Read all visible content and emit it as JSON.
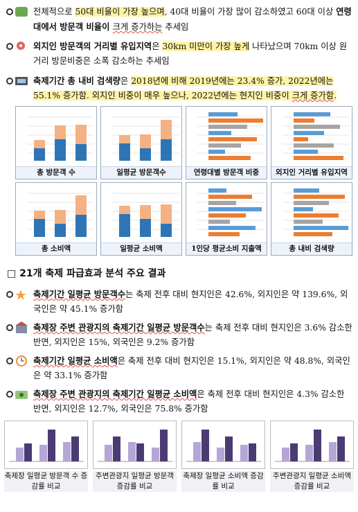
{
  "intro": [
    {
      "runs": [
        "전체적으로 ",
        "50대 비율이 가장 높으며",
        ", 40대 비율이 가장 많이 감소하였고 60대 이상 ",
        "연령대에서 방문객 비율이 ",
        "크게 증가하는",
        " 추세임"
      ]
    },
    {
      "runs": [
        "외지인 방문객의 거리별 유입지역",
        "은 ",
        "30km 미만이 가장 높게",
        " 나타났으며 70km 이상 원거리 방문비중은 소폭 감소하는 추세임"
      ]
    },
    {
      "runs": [
        "축제기간 총 내비 검색량",
        "은 ",
        "2018년에 비해 2019년에는 23.4% 증가, 2022년에는 55.1% 증가함",
        ". 외지인 비중이 매우 높으나, 2022년에는 현지인 비중이 ",
        "크게 증가함",
        "."
      ]
    }
  ],
  "chart_captions": [
    "총 방문객 수",
    "일평균 방문객수",
    "연령대별 방문객 비중",
    "외지인 거리별 유입지역",
    "총 소비액",
    "일평균 소비액",
    "1인당 평균소비 지출액",
    "총 내비 검색량"
  ],
  "section": {
    "title": "□ 21개 축제 파급효과 분석 주요 결과",
    "items": [
      {
        "runs": [
          "축제기간 일평균 방문객수",
          "는 축제 전후 대비 현지인은 42.6%, 외지인은 약 139.6%, 외국인은 약 45.1% 증가함"
        ]
      },
      {
        "runs": [
          "축제장 주변 관광지의 축제기간 일평균 방문객수",
          "는 축제 전후 대비 현지인은 3.6% 감소한 반면, 외지인은 15%, 외국인은 9.2% 증가함"
        ]
      },
      {
        "runs": [
          "축제기간 일평균 소비액",
          "은 축제 전후 대비 현지인은 15.1%, 외지인은 약 48.8%, 외국인은 약 33.1% 증가함"
        ]
      },
      {
        "runs": [
          "축제장 주변 관광지의 축제기간 일평균 소비액",
          "은 축제 전후 대비 현지인은 4.3% 감소한 반면, 외지인은 12.7%, 외국인은 75.8% 증가함"
        ]
      }
    ]
  },
  "bottom_captions": [
    "축제장 일평균 방문객 수 증감률 비교",
    "주변관광지 일평균 방문객 증감률 비교",
    "축제장 일평균 소비액 증감률 비교",
    "주변관광지 일평균 소비액 증감률 비교"
  ]
}
